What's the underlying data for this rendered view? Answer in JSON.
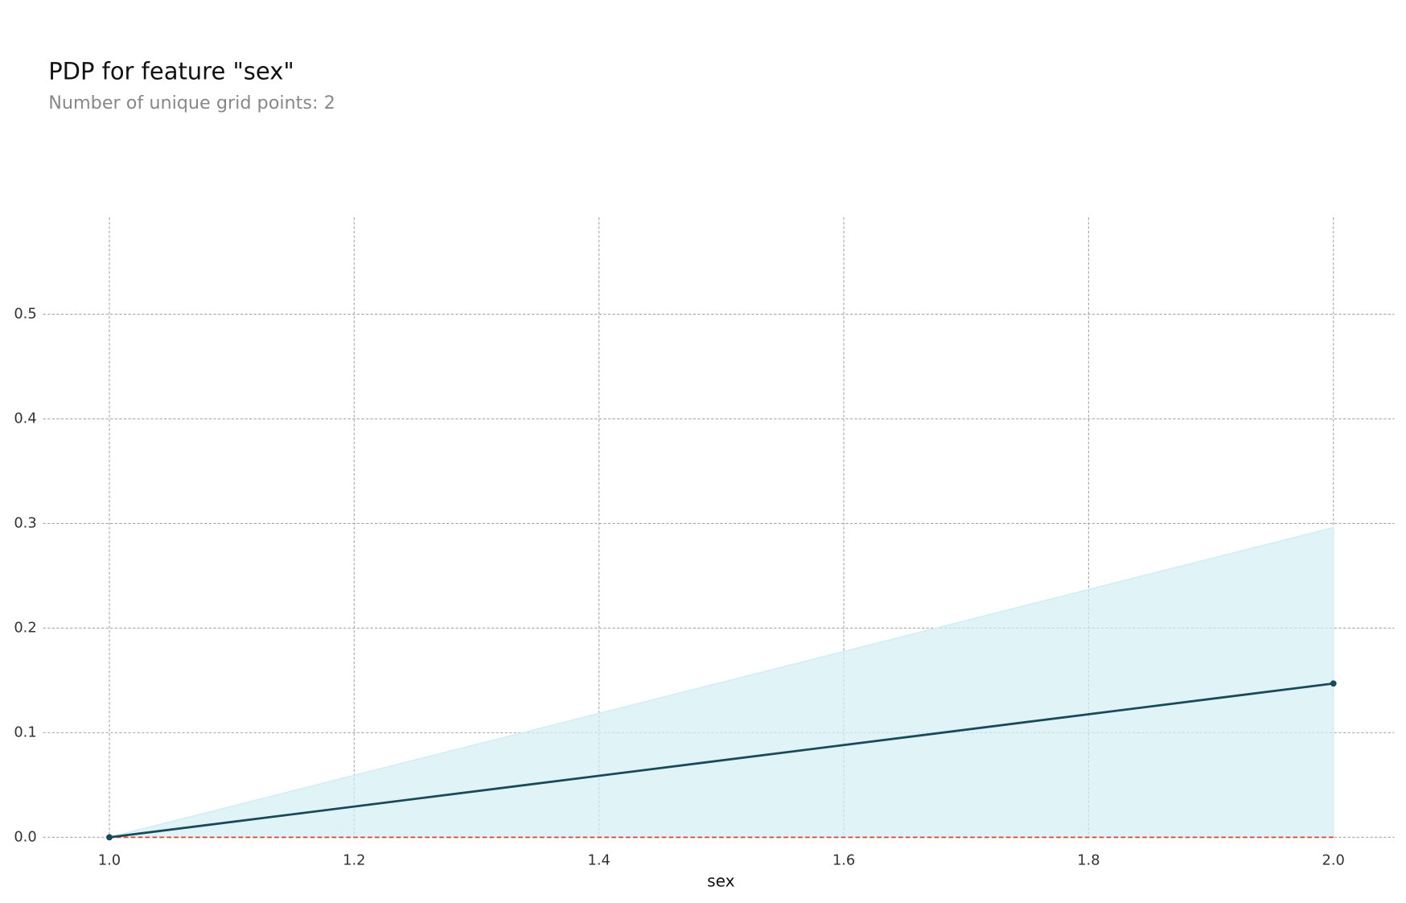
{
  "chart_data": {
    "type": "line",
    "title": "PDP for feature \"sex\"",
    "subtitle": "Number of unique grid points: 2",
    "x_label": "sex",
    "x": [
      1.0,
      2.0
    ],
    "values": [
      0.0,
      0.147
    ],
    "upper": [
      0.0,
      0.296
    ],
    "lower": [
      0.0,
      0.0
    ],
    "baseline": 0.0,
    "color": "#1a4a5a",
    "band_color": "#d3eef4",
    "baseline_color": "#e0452c",
    "xlim": [
      0.9458,
      2.0498
    ],
    "ylim": [
      0.0,
      0.5926
    ],
    "xticks": [
      {
        "value": 1.0,
        "label": "1.0"
      },
      1.2,
      1.4,
      1.6,
      1.8,
      {
        "value": 2.0,
        "label": "2.0"
      }
    ],
    "yticks": [
      {
        "value": 0.0,
        "label": "0.0"
      },
      0.1,
      0.2,
      0.3,
      0.4,
      0.5
    ],
    "grid": true
  }
}
